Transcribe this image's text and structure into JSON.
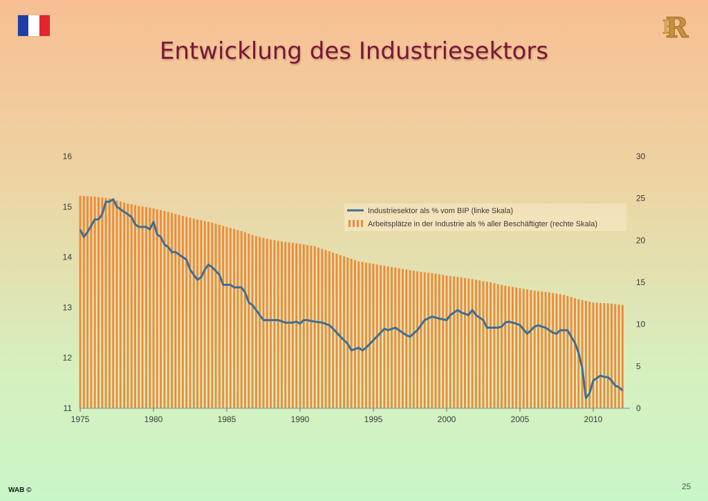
{
  "slide": {
    "title": "Entwicklung des Industriesektors",
    "footer": "WAB ©",
    "page_number": "25"
  },
  "icons": {
    "flag": "french-flag-icon",
    "logo": "rf-monogram-logo"
  },
  "colors": {
    "title": "#7a1538",
    "bar": "#ef8a3a",
    "line": "#3d6e95",
    "flag": [
      "#1e3fa6",
      "#ffffff",
      "#e0252f"
    ],
    "logo": "#c4903e"
  },
  "chart_data": {
    "type": "bar",
    "xlim": [
      1975,
      2012.5
    ],
    "xticks": [
      1975,
      1980,
      1985,
      1990,
      1995,
      2000,
      2005,
      2010
    ],
    "y_left": {
      "lim": [
        11,
        16
      ],
      "ticks": [
        11,
        12,
        13,
        14,
        15,
        16
      ]
    },
    "y_right": {
      "lim": [
        0,
        30
      ],
      "ticks": [
        0,
        5,
        10,
        15,
        20,
        25,
        30
      ]
    },
    "legend_position": "top-right",
    "series": [
      {
        "name": "Industriesektor als % vom BIP (linke Skala)",
        "type": "line",
        "axis": "left",
        "points": [
          [
            1975.0,
            14.55
          ],
          [
            1975.25,
            14.4
          ],
          [
            1975.5,
            14.5
          ],
          [
            1976.0,
            14.75
          ],
          [
            1976.25,
            14.75
          ],
          [
            1976.5,
            14.85
          ],
          [
            1976.75,
            15.1
          ],
          [
            1977.0,
            15.1
          ],
          [
            1977.25,
            15.15
          ],
          [
            1977.5,
            15.0
          ],
          [
            1978.0,
            14.9
          ],
          [
            1978.5,
            14.8
          ],
          [
            1978.75,
            14.65
          ],
          [
            1979.0,
            14.6
          ],
          [
            1979.5,
            14.6
          ],
          [
            1979.75,
            14.55
          ],
          [
            1980.0,
            14.7
          ],
          [
            1980.25,
            14.45
          ],
          [
            1980.5,
            14.4
          ],
          [
            1980.75,
            14.25
          ],
          [
            1981.0,
            14.2
          ],
          [
            1981.25,
            14.1
          ],
          [
            1981.5,
            14.1
          ],
          [
            1982.0,
            14.0
          ],
          [
            1982.25,
            13.95
          ],
          [
            1982.5,
            13.75
          ],
          [
            1983.0,
            13.55
          ],
          [
            1983.25,
            13.6
          ],
          [
            1983.5,
            13.75
          ],
          [
            1983.75,
            13.85
          ],
          [
            1984.0,
            13.8
          ],
          [
            1984.5,
            13.65
          ],
          [
            1984.75,
            13.45
          ],
          [
            1985.0,
            13.45
          ],
          [
            1985.25,
            13.45
          ],
          [
            1985.5,
            13.4
          ],
          [
            1986.0,
            13.4
          ],
          [
            1986.25,
            13.3
          ],
          [
            1986.5,
            13.1
          ],
          [
            1986.75,
            13.05
          ],
          [
            1987.0,
            12.95
          ],
          [
            1987.25,
            12.85
          ],
          [
            1987.5,
            12.75
          ],
          [
            1988.0,
            12.75
          ],
          [
            1988.5,
            12.75
          ],
          [
            1989.0,
            12.7
          ],
          [
            1989.5,
            12.7
          ],
          [
            1989.75,
            12.72
          ],
          [
            1990.0,
            12.68
          ],
          [
            1990.25,
            12.75
          ],
          [
            1990.5,
            12.75
          ],
          [
            1991.0,
            12.72
          ],
          [
            1991.5,
            12.7
          ],
          [
            1992.0,
            12.65
          ],
          [
            1992.25,
            12.58
          ],
          [
            1992.5,
            12.5
          ],
          [
            1993.0,
            12.35
          ],
          [
            1993.25,
            12.28
          ],
          [
            1993.5,
            12.15
          ],
          [
            1994.0,
            12.2
          ],
          [
            1994.25,
            12.15
          ],
          [
            1994.5,
            12.2
          ],
          [
            1995.0,
            12.35
          ],
          [
            1995.5,
            12.5
          ],
          [
            1995.75,
            12.58
          ],
          [
            1996.0,
            12.55
          ],
          [
            1996.5,
            12.6
          ],
          [
            1996.75,
            12.55
          ],
          [
            1997.0,
            12.5
          ],
          [
            1997.25,
            12.45
          ],
          [
            1997.5,
            12.42
          ],
          [
            1998.0,
            12.55
          ],
          [
            1998.5,
            12.75
          ],
          [
            1999.0,
            12.82
          ],
          [
            1999.5,
            12.78
          ],
          [
            2000.0,
            12.75
          ],
          [
            2000.25,
            12.85
          ],
          [
            2000.5,
            12.9
          ],
          [
            2000.75,
            12.95
          ],
          [
            2001.0,
            12.9
          ],
          [
            2001.5,
            12.85
          ],
          [
            2001.75,
            12.95
          ],
          [
            2002.0,
            12.85
          ],
          [
            2002.5,
            12.75
          ],
          [
            2002.75,
            12.6
          ],
          [
            2003.0,
            12.6
          ],
          [
            2003.5,
            12.6
          ],
          [
            2003.75,
            12.62
          ],
          [
            2004.0,
            12.7
          ],
          [
            2004.25,
            12.72
          ],
          [
            2004.75,
            12.68
          ],
          [
            2005.0,
            12.65
          ],
          [
            2005.5,
            12.48
          ],
          [
            2006.0,
            12.62
          ],
          [
            2006.25,
            12.65
          ],
          [
            2006.5,
            12.62
          ],
          [
            2006.75,
            12.6
          ],
          [
            2007.0,
            12.55
          ],
          [
            2007.25,
            12.5
          ],
          [
            2007.5,
            12.48
          ],
          [
            2007.75,
            12.55
          ],
          [
            2008.0,
            12.55
          ],
          [
            2008.25,
            12.55
          ],
          [
            2008.5,
            12.42
          ],
          [
            2008.75,
            12.3
          ],
          [
            2009.0,
            12.1
          ],
          [
            2009.25,
            11.8
          ],
          [
            2009.5,
            11.2
          ],
          [
            2009.75,
            11.3
          ],
          [
            2010.0,
            11.55
          ],
          [
            2010.25,
            11.6
          ],
          [
            2010.5,
            11.65
          ],
          [
            2010.75,
            11.62
          ],
          [
            2011.0,
            11.62
          ],
          [
            2011.25,
            11.55
          ],
          [
            2011.5,
            11.45
          ],
          [
            2011.75,
            11.42
          ],
          [
            2012.0,
            11.35
          ]
        ]
      },
      {
        "name": "Arbeitsplätze in der Industrie als % aller Beschäftigter (rechte Skala)",
        "type": "bar",
        "axis": "right",
        "points": [
          [
            1975,
            25.3
          ],
          [
            1976,
            25.2
          ],
          [
            1977,
            25.0
          ],
          [
            1978,
            24.5
          ],
          [
            1979,
            24.1
          ],
          [
            1980,
            23.8
          ],
          [
            1981,
            23.4
          ],
          [
            1982,
            22.9
          ],
          [
            1983,
            22.5
          ],
          [
            1984,
            22.1
          ],
          [
            1985,
            21.6
          ],
          [
            1986,
            21.1
          ],
          [
            1987,
            20.5
          ],
          [
            1988,
            20.1
          ],
          [
            1989,
            19.8
          ],
          [
            1990,
            19.6
          ],
          [
            1991,
            19.3
          ],
          [
            1992,
            18.7
          ],
          [
            1993,
            18.1
          ],
          [
            1994,
            17.5
          ],
          [
            1995,
            17.2
          ],
          [
            1996,
            16.9
          ],
          [
            1997,
            16.6
          ],
          [
            1998,
            16.3
          ],
          [
            1999,
            16.1
          ],
          [
            2000,
            15.8
          ],
          [
            2001,
            15.6
          ],
          [
            2002,
            15.3
          ],
          [
            2003,
            15.0
          ],
          [
            2004,
            14.6
          ],
          [
            2005,
            14.3
          ],
          [
            2006,
            14.0
          ],
          [
            2007,
            13.8
          ],
          [
            2008,
            13.5
          ],
          [
            2009,
            13.0
          ],
          [
            2010,
            12.6
          ],
          [
            2011,
            12.5
          ],
          [
            2012,
            12.3
          ]
        ]
      }
    ]
  }
}
